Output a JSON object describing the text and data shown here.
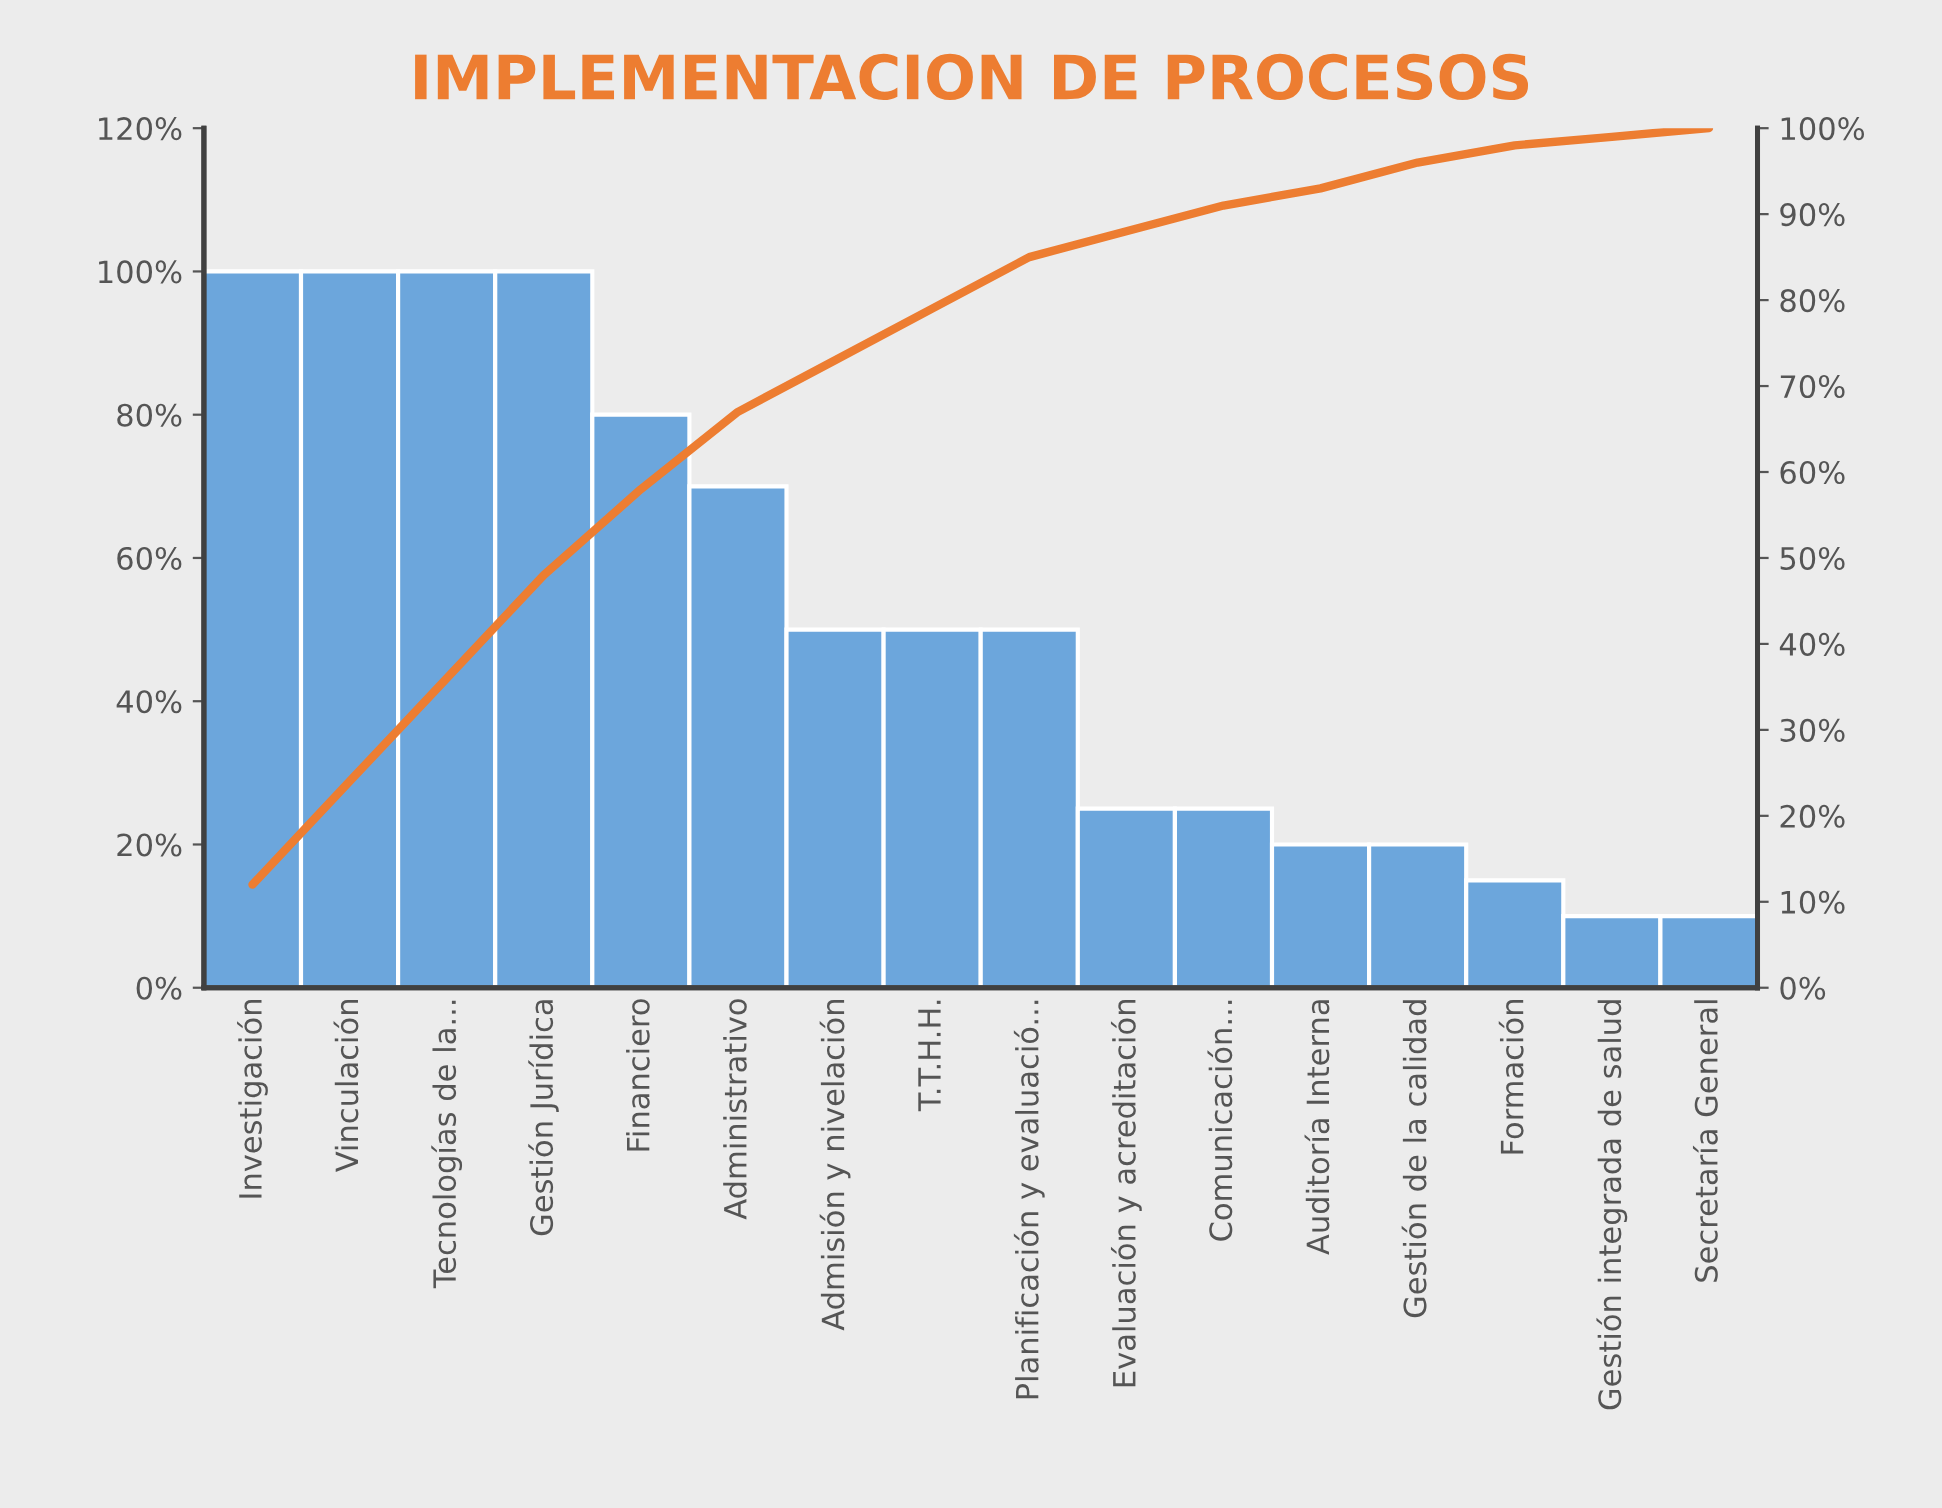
{
  "chart_data": {
    "type": "bar",
    "title": "IMPLEMENTACION DE PROCESOS",
    "categories": [
      "Investigación",
      "Vinculación",
      "Tecnologías de la...",
      "Gestión Jurídica",
      "Financiero",
      "Administrativo",
      "Admisión y nivelación",
      "T.T.H.H.",
      "Planificación y evaluació...",
      "Evaluación y acreditación",
      "Comunicación...",
      "Auditoría Interna",
      "Gestión de la calidad",
      "Formación",
      "Gestión integrada de salud",
      "Secretaría General"
    ],
    "series": [
      {
        "color": "#6ca6dc",
        "values": [
          100,
          100,
          100,
          100,
          80,
          70,
          50,
          50,
          50,
          25,
          25,
          20,
          20,
          15,
          10,
          10
        ]
      },
      {
        "type": "line",
        "axis": "y2",
        "color": "#ed7d31",
        "values": [
          12,
          24,
          36,
          48,
          58,
          67,
          73,
          79,
          85,
          88,
          91,
          93,
          96,
          98,
          99,
          100
        ]
      }
    ],
    "ylim": [
      0,
      120
    ],
    "yticks": [
      {
        "value": 0,
        "label": "0%"
      },
      {
        "value": 20,
        "label": "20%"
      },
      {
        "value": 40,
        "label": "40%"
      },
      {
        "value": 60,
        "label": "60%"
      },
      {
        "value": 80,
        "label": "80%"
      },
      {
        "value": 100,
        "label": "100%"
      },
      {
        "value": 120,
        "label": "120%"
      }
    ],
    "y2lim": [
      0,
      100
    ],
    "y2ticks": [
      {
        "value": 0,
        "label": "0%"
      },
      {
        "value": 10,
        "label": "10%"
      },
      {
        "value": 20,
        "label": "20%"
      },
      {
        "value": 30,
        "label": "30%"
      },
      {
        "value": 40,
        "label": "40%"
      },
      {
        "value": 50,
        "label": "50%"
      },
      {
        "value": 60,
        "label": "60%"
      },
      {
        "value": 70,
        "label": "70%"
      },
      {
        "value": 80,
        "label": "80%"
      },
      {
        "value": 90,
        "label": "90%"
      },
      {
        "value": 100,
        "label": "100%"
      }
    ],
    "grid": false,
    "legend": false,
    "marker": "none",
    "line_style": "solid"
  }
}
